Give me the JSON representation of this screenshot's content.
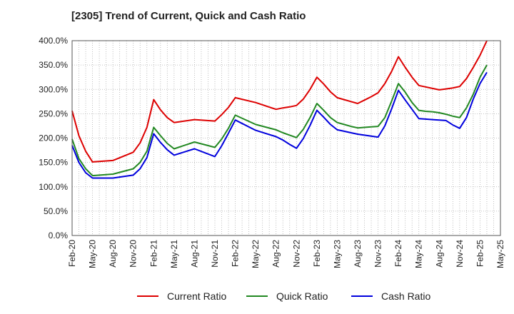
{
  "chart_data": {
    "type": "line",
    "title": "[2305]  Trend of Current, Quick and Cash Ratio",
    "xlabel": "",
    "ylabel": "",
    "ylim": [
      0,
      400
    ],
    "y_ticks": [
      "0.0%",
      "50.0%",
      "100.0%",
      "150.0%",
      "200.0%",
      "250.0%",
      "300.0%",
      "350.0%",
      "400.0%"
    ],
    "y_tick_values": [
      0,
      50,
      100,
      150,
      200,
      250,
      300,
      350,
      400
    ],
    "x_ticks": [
      "Feb-20",
      "May-20",
      "Aug-20",
      "Nov-20",
      "Feb-21",
      "May-21",
      "Aug-21",
      "Nov-21",
      "Feb-22",
      "May-22",
      "Aug-22",
      "Nov-22",
      "Feb-23",
      "May-23",
      "Aug-23",
      "Nov-23",
      "Feb-24",
      "May-24",
      "Aug-24",
      "Nov-24",
      "Feb-25",
      "May-25"
    ],
    "x_months": [
      0,
      1,
      2,
      3,
      4,
      5,
      6,
      7,
      8,
      9,
      10,
      11,
      12,
      13,
      14,
      15,
      16,
      17,
      18,
      19,
      20,
      21,
      22,
      23,
      24,
      25,
      26,
      27,
      28,
      29,
      30,
      31,
      32,
      33,
      34,
      35,
      36,
      37,
      38,
      39,
      40,
      41,
      42,
      43,
      44,
      45,
      46,
      47,
      48,
      49,
      50,
      51,
      52,
      53,
      54,
      55,
      56,
      57,
      58,
      59,
      60,
      61,
      62,
      63
    ],
    "x_range_months": [
      0,
      63
    ],
    "series": [
      {
        "name": "Current Ratio",
        "color": "#dd0000",
        "x": [
          0,
          1,
          2,
          3,
          6,
          9,
          10,
          11,
          12,
          13,
          14,
          15,
          18,
          21,
          22,
          23,
          24,
          27,
          30,
          31,
          32,
          33,
          34,
          35,
          36,
          37,
          38,
          39,
          40,
          41,
          42,
          43,
          44,
          45,
          46,
          47,
          48,
          49,
          50,
          51,
          52,
          53,
          54,
          55,
          56,
          57,
          58,
          59,
          60,
          61
        ],
        "values": [
          256,
          205,
          173,
          151,
          154,
          171,
          190,
          222,
          279,
          258,
          242,
          232,
          238,
          235,
          248,
          263,
          283,
          273,
          259,
          262,
          264,
          267,
          280,
          300,
          325,
          311,
          295,
          283,
          279,
          275,
          271,
          278,
          285,
          293,
          312,
          337,
          367,
          345,
          325,
          308,
          305,
          302,
          299,
          301,
          303,
          306,
          322,
          345,
          370,
          400
        ]
      },
      {
        "name": "Quick Ratio",
        "color": "#228822",
        "x": [
          0,
          1,
          2,
          3,
          6,
          9,
          10,
          11,
          12,
          13,
          14,
          15,
          18,
          21,
          22,
          23,
          24,
          27,
          30,
          31,
          32,
          33,
          34,
          35,
          36,
          37,
          38,
          39,
          40,
          41,
          42,
          43,
          44,
          45,
          46,
          47,
          48,
          49,
          50,
          51,
          52,
          53,
          54,
          55,
          56,
          57,
          58,
          59,
          60,
          61
        ],
        "values": [
          198,
          158,
          137,
          123,
          126,
          137,
          150,
          173,
          222,
          205,
          189,
          178,
          192,
          181,
          198,
          220,
          247,
          228,
          217,
          211,
          206,
          201,
          218,
          242,
          271,
          257,
          242,
          232,
          228,
          224,
          221,
          222,
          223,
          224,
          242,
          276,
          312,
          294,
          273,
          257,
          255,
          254,
          252,
          249,
          245,
          242,
          262,
          290,
          325,
          350
        ]
      },
      {
        "name": "Cash Ratio",
        "color": "#0000dd",
        "x": [
          0,
          1,
          2,
          3,
          6,
          9,
          10,
          11,
          12,
          13,
          14,
          15,
          18,
          21,
          22,
          23,
          24,
          27,
          30,
          31,
          32,
          33,
          34,
          35,
          36,
          37,
          38,
          39,
          40,
          41,
          42,
          43,
          44,
          45,
          46,
          47,
          48,
          49,
          50,
          51,
          52,
          53,
          54,
          55,
          56,
          57,
          58,
          59,
          60,
          61
        ],
        "values": [
          185,
          150,
          129,
          118,
          118,
          124,
          137,
          160,
          209,
          191,
          176,
          165,
          178,
          162,
          184,
          210,
          237,
          216,
          203,
          196,
          187,
          179,
          199,
          226,
          257,
          243,
          228,
          217,
          214,
          211,
          208,
          206,
          204,
          202,
          225,
          260,
          298,
          278,
          259,
          240,
          239,
          238,
          237,
          236,
          227,
          220,
          242,
          280,
          312,
          335
        ]
      }
    ]
  }
}
